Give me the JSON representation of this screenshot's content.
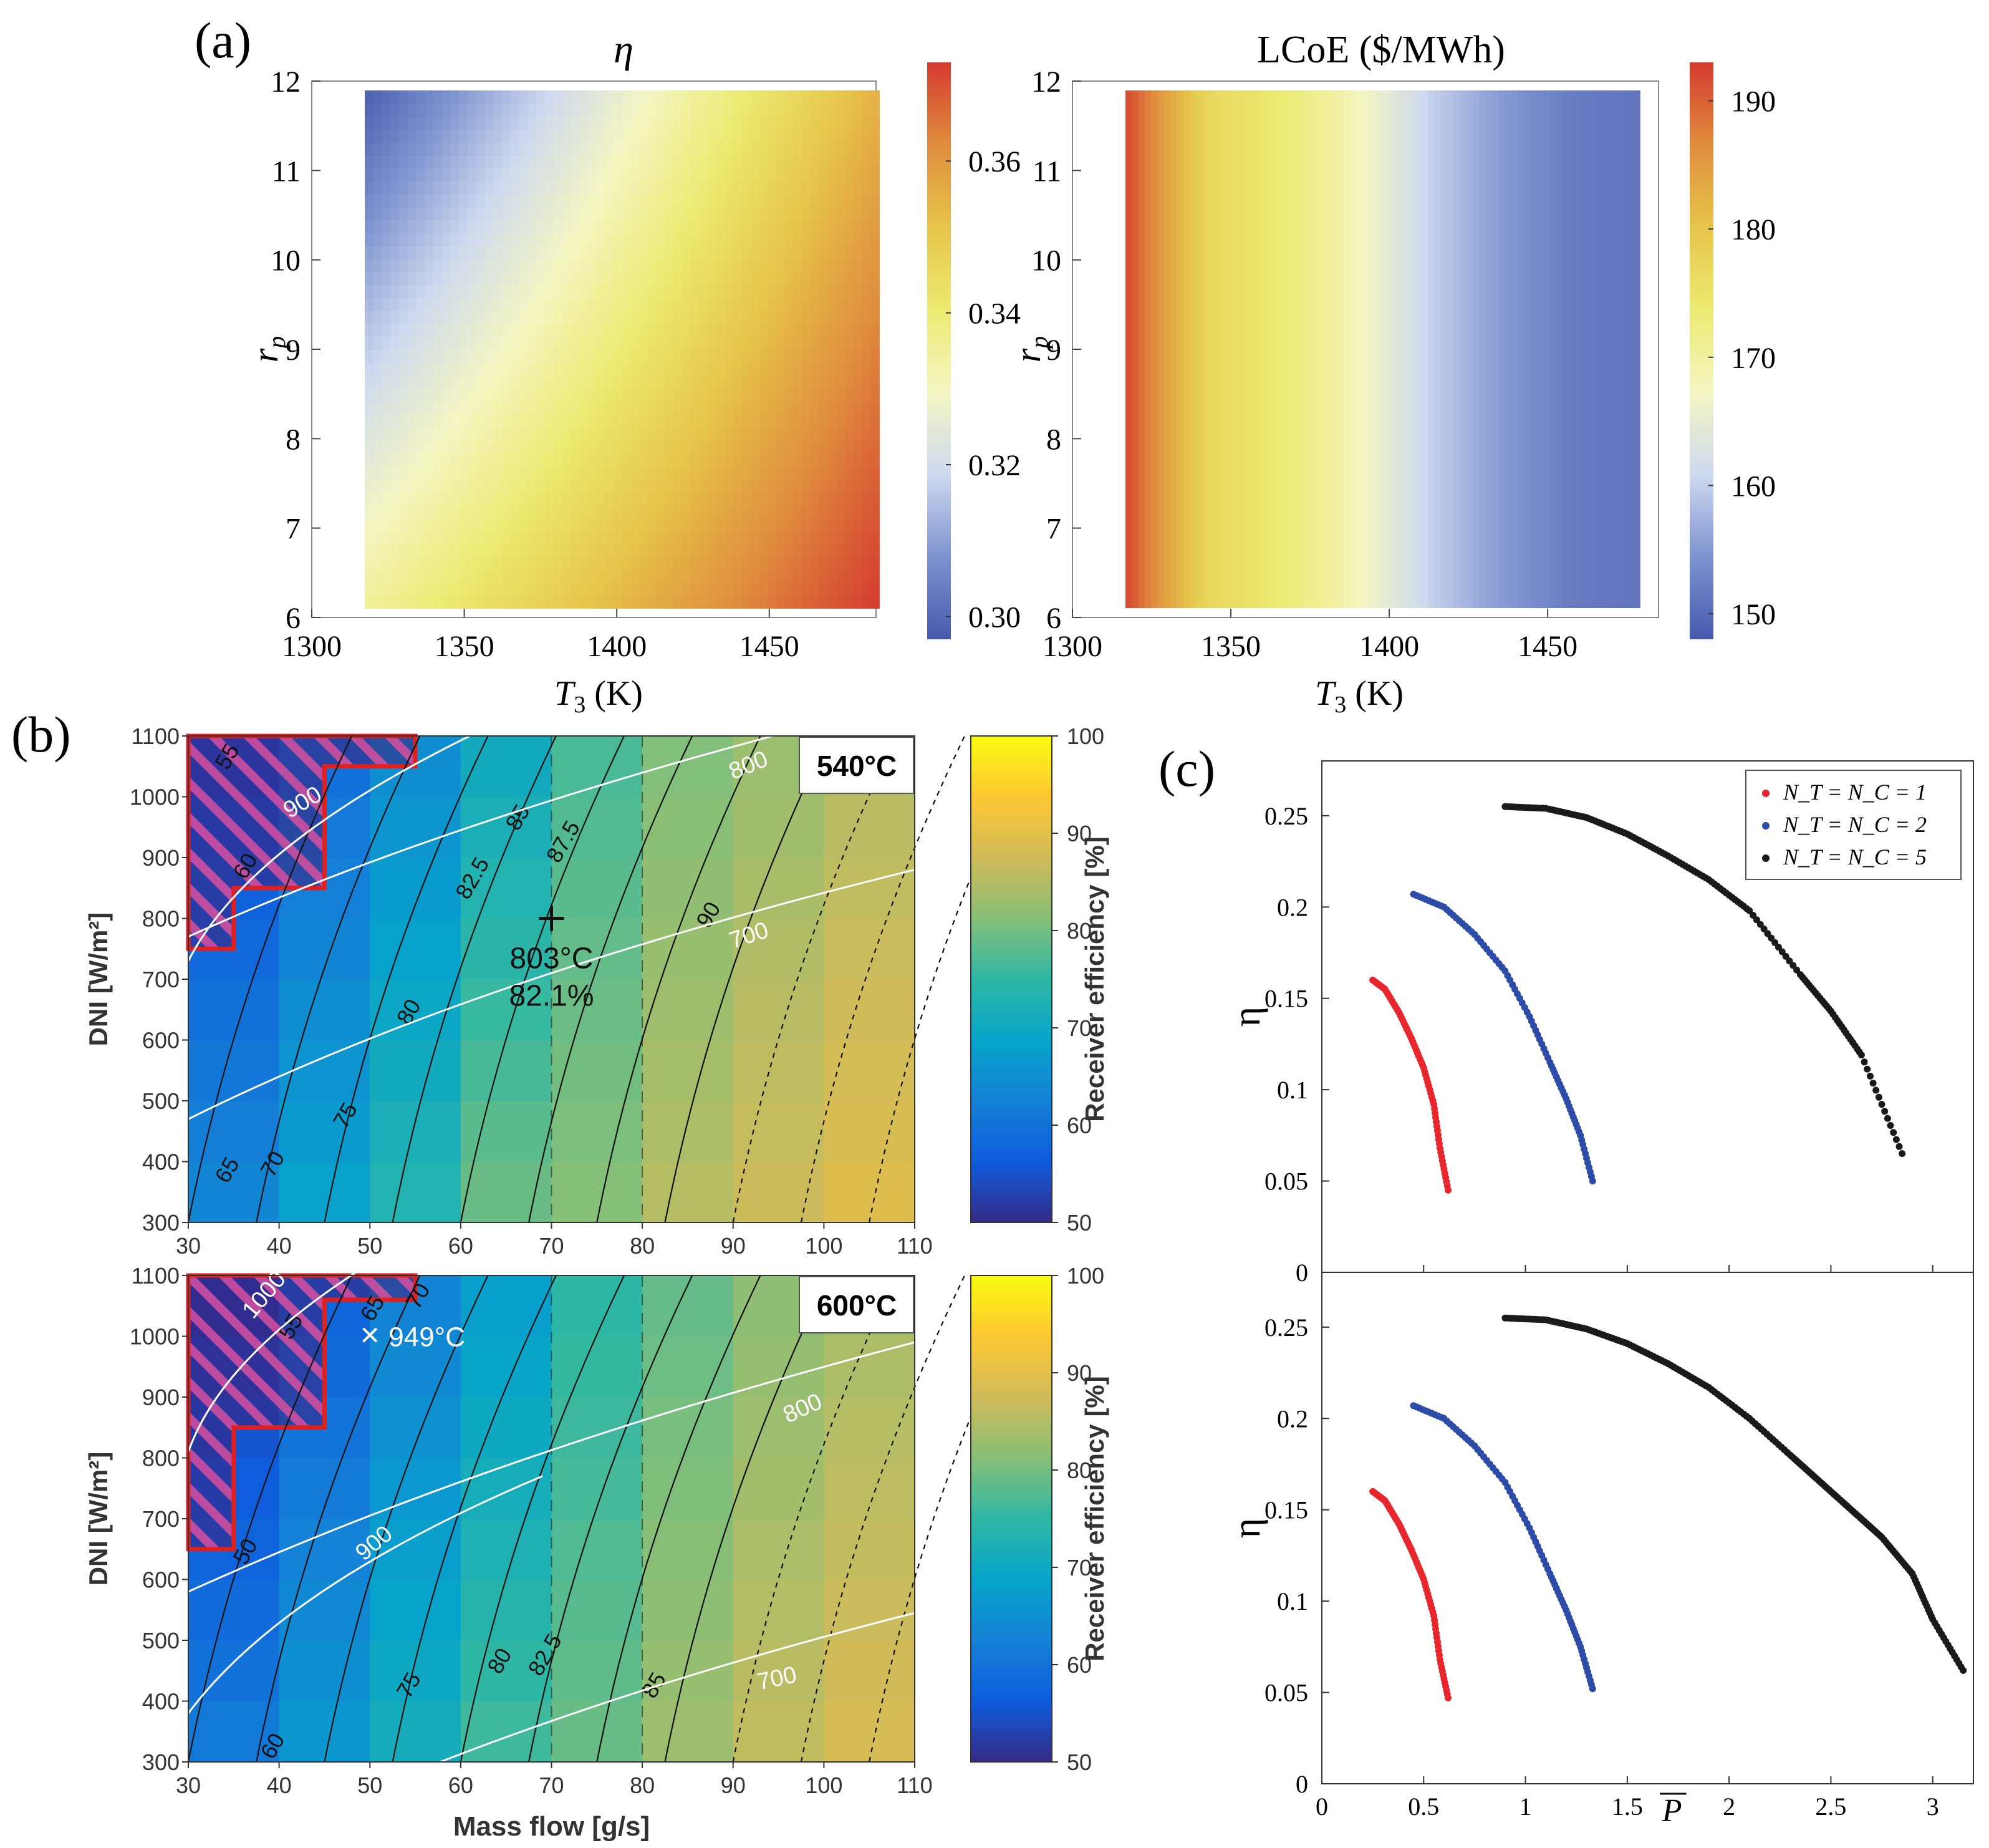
{
  "panel_labels": {
    "a": "(a)",
    "b": "(b)",
    "c": "(c)"
  },
  "chart_data": [
    {
      "id": "a_eta",
      "type": "heatmap",
      "title": "η",
      "xlabel_main": "T",
      "xlabel_sub": "3",
      "xlabel_unit": " (K)",
      "ylabel_main": "r",
      "ylabel_sub": "p",
      "xlim": [
        1300,
        1485
      ],
      "ylim": [
        6,
        12
      ],
      "xticks": [
        1300,
        1350,
        1400,
        1450
      ],
      "yticks": [
        6,
        7,
        8,
        9,
        10,
        11,
        12
      ],
      "colorbar": {
        "range": [
          0.297,
          0.373
        ],
        "ticks": [
          0.3,
          0.32,
          0.34,
          0.36
        ],
        "ticklabels": [
          "0.30",
          "0.32",
          "0.34",
          "0.36"
        ]
      },
      "corner_values": {
        "T1300_r6": 0.335,
        "T1300_r12": 0.298,
        "T1485_r6": 0.373,
        "T1485_r12": 0.355
      },
      "colorscale": [
        "#4759ad",
        "#7d93cf",
        "#cfd9ef",
        "#f4f6c2",
        "#ecea72",
        "#e6c54a",
        "#e08d3e",
        "#d43b2f"
      ]
    },
    {
      "id": "a_lcoe",
      "type": "heatmap",
      "title": "LCoE ($/MWh)",
      "xlabel_main": "T",
      "xlabel_sub": "3",
      "xlabel_unit": " (K)",
      "ylabel_main": "r",
      "ylabel_sub": "p",
      "xlim": [
        1300,
        1485
      ],
      "ylim": [
        6,
        12
      ],
      "xticks": [
        1300,
        1350,
        1400,
        1450
      ],
      "yticks": [
        6,
        7,
        8,
        9,
        10,
        11,
        12
      ],
      "colorbar": {
        "range": [
          148,
          193
        ],
        "ticks": [
          150,
          160,
          170,
          180,
          190
        ],
        "ticklabels": [
          "150",
          "160",
          "170",
          "180",
          "190"
        ]
      },
      "profile_T": [
        1300,
        1315,
        1330,
        1345,
        1360,
        1375,
        1390,
        1410,
        1430,
        1460,
        1485
      ],
      "profile_LCoE": [
        192,
        184,
        177,
        175,
        173,
        170,
        166,
        160,
        156,
        152,
        151
      ]
    },
    {
      "id": "b_540",
      "type": "contour",
      "badge": "540°C",
      "xlabel": "Mass flow [g/s]",
      "ylabel": "DNI [W/m²]",
      "xlim": [
        30,
        110
      ],
      "ylim": [
        300,
        1100
      ],
      "xticks": [
        30,
        40,
        50,
        60,
        70,
        80,
        90,
        100,
        110
      ],
      "yticks": [
        300,
        400,
        500,
        600,
        700,
        800,
        900,
        1000,
        1100
      ],
      "colorbar": {
        "label": "Receiver efficiency [%]",
        "range": [
          50,
          100
        ],
        "ticks": [
          50,
          60,
          70,
          80,
          90,
          100
        ]
      },
      "column_efficiency": [
        59,
        64,
        69,
        75,
        79,
        83,
        85,
        87
      ],
      "contour_labels": [
        "55",
        "60",
        "65",
        "70",
        "75",
        "80",
        "82.5",
        "85",
        "87.5",
        "90"
      ],
      "temperature_labels": [
        "900",
        "800",
        "700"
      ],
      "marker": {
        "symbol": "+",
        "mass_flow": 70,
        "dni": 800,
        "text1": "803°C",
        "text2": "82.1%"
      }
    },
    {
      "id": "b_600",
      "type": "contour",
      "badge": "600°C",
      "xlabel": "Mass flow [g/s]",
      "ylabel": "DNI [W/m²]",
      "xlim": [
        30,
        110
      ],
      "ylim": [
        300,
        1100
      ],
      "xticks": [
        30,
        40,
        50,
        60,
        70,
        80,
        90,
        100,
        110
      ],
      "yticks": [
        300,
        400,
        500,
        600,
        700,
        800,
        900,
        1000,
        1100
      ],
      "colorbar": {
        "label": "Receiver efficiency [%]",
        "range": [
          50,
          100
        ],
        "ticks": [
          50,
          60,
          70,
          80,
          90,
          100
        ]
      },
      "column_efficiency": [
        57,
        62,
        67,
        72,
        77,
        81,
        84,
        86
      ],
      "contour_labels": [
        "50",
        "55",
        "60",
        "65",
        "70",
        "75",
        "80",
        "82.5",
        "85"
      ],
      "temperature_labels": [
        "1000",
        "900",
        "800",
        "700"
      ],
      "marker": {
        "symbol": "×",
        "mass_flow": 50,
        "dni": 1000,
        "text1": "949°C"
      }
    },
    {
      "id": "c_top",
      "type": "scatter",
      "ylabel": "η",
      "xlabel": "P",
      "xlim": [
        0,
        3.2
      ],
      "ylim": [
        0,
        0.28
      ],
      "xticks": [
        0,
        0.5,
        1,
        1.5,
        2,
        2.5,
        3
      ],
      "xticklabels": [
        "0",
        "0.5",
        "1",
        "1.5",
        "2",
        "2.5",
        "3"
      ],
      "yticks": [
        0,
        0.05,
        0.1,
        0.15,
        0.2,
        0.25
      ],
      "yticklabels": [
        "0",
        "0.05",
        "0.1",
        "0.15",
        "0.2",
        "0.25"
      ],
      "series": [
        {
          "name": "N_T = N_C = 1",
          "color": "#e8262d",
          "x": [
            0.25,
            0.31,
            0.38,
            0.44,
            0.5,
            0.55,
            0.58,
            0.62
          ],
          "y": [
            0.16,
            0.155,
            0.142,
            0.128,
            0.112,
            0.092,
            0.068,
            0.045
          ]
        },
        {
          "name": "N_T = N_C = 2",
          "color": "#2c4ca8",
          "x": [
            0.45,
            0.6,
            0.75,
            0.9,
            1.02,
            1.12,
            1.2,
            1.27,
            1.33
          ],
          "y": [
            0.207,
            0.2,
            0.185,
            0.165,
            0.14,
            0.115,
            0.095,
            0.075,
            0.05
          ]
        },
        {
          "name": "N_T = N_C = 5",
          "color": "#1a1a1a",
          "x": [
            0.9,
            1.1,
            1.3,
            1.5,
            1.7,
            1.9,
            2.1,
            2.35,
            2.5,
            2.65,
            2.85
          ],
          "y": [
            0.255,
            0.254,
            0.249,
            0.24,
            0.228,
            0.215,
            0.198,
            0.163,
            0.143,
            0.119,
            0.065
          ]
        }
      ],
      "legend_position": "top-right"
    },
    {
      "id": "c_bottom",
      "type": "scatter",
      "ylabel": "η",
      "xlabel": "P",
      "xlim": [
        0,
        3.2
      ],
      "ylim": [
        0,
        0.28
      ],
      "xticks": [
        0,
        0.5,
        1,
        1.5,
        2,
        2.5,
        3
      ],
      "xticklabels": [
        "0",
        "0.5",
        "1",
        "1.5",
        "2",
        "2.5",
        "3"
      ],
      "yticks": [
        0,
        0.05,
        0.1,
        0.15,
        0.2,
        0.25
      ],
      "yticklabels": [
        "0",
        "0.05",
        "0.1",
        "0.15",
        "0.2",
        "0.25"
      ],
      "series": [
        {
          "name": "N_T = N_C = 1",
          "color": "#e8262d",
          "x": [
            0.25,
            0.31,
            0.38,
            0.44,
            0.5,
            0.55,
            0.58,
            0.62
          ],
          "y": [
            0.16,
            0.155,
            0.142,
            0.128,
            0.112,
            0.092,
            0.068,
            0.047
          ]
        },
        {
          "name": "N_T = N_C = 2",
          "color": "#2c4ca8",
          "x": [
            0.45,
            0.6,
            0.75,
            0.9,
            1.02,
            1.12,
            1.2,
            1.27,
            1.33
          ],
          "y": [
            0.207,
            0.2,
            0.185,
            0.165,
            0.14,
            0.115,
            0.095,
            0.075,
            0.052
          ]
        },
        {
          "name": "N_T = N_C = 5",
          "color": "#1a1a1a",
          "x": [
            0.9,
            1.1,
            1.3,
            1.5,
            1.7,
            1.9,
            2.1,
            2.3,
            2.45,
            2.6,
            2.75,
            2.9,
            3.0,
            3.15
          ],
          "y": [
            0.255,
            0.254,
            0.249,
            0.241,
            0.23,
            0.217,
            0.2,
            0.18,
            0.165,
            0.15,
            0.135,
            0.115,
            0.09,
            0.062
          ]
        }
      ]
    }
  ]
}
